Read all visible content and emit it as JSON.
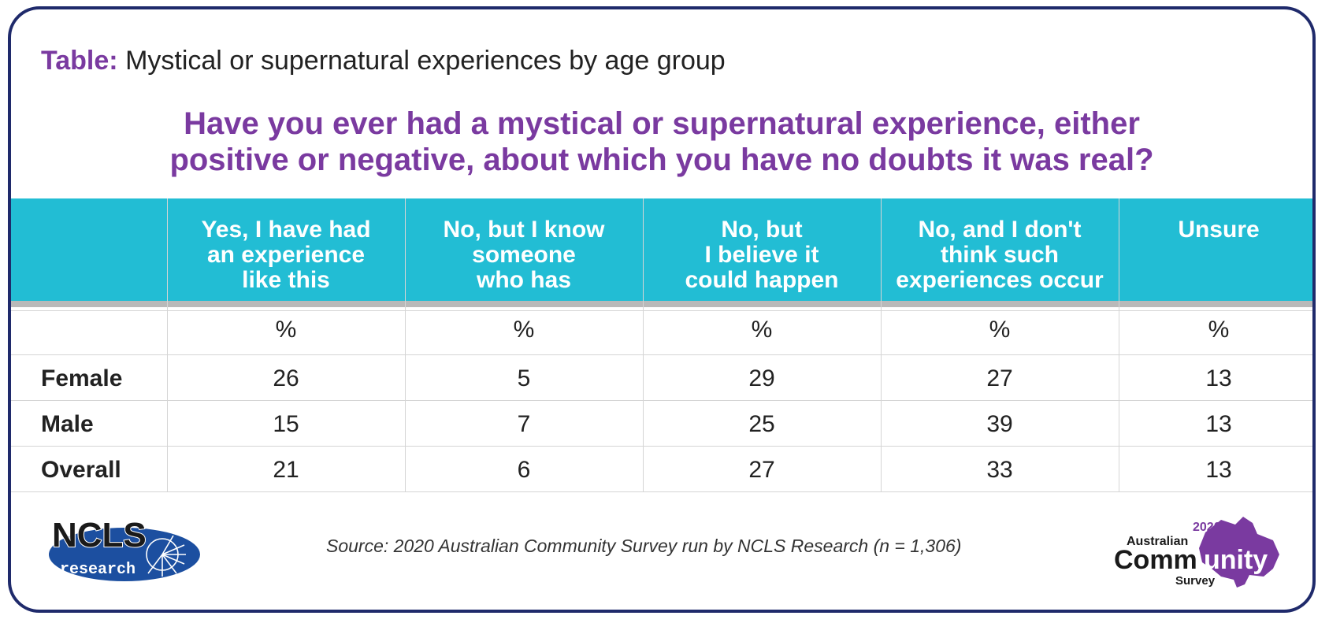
{
  "table_title": {
    "prefix": "Table:",
    "text": "Mystical or supernatural experiences by age group"
  },
  "question": {
    "line1": "Have you ever had a mystical or supernatural experience, either",
    "line2": "positive or negative, about which you have no doubts it was real?"
  },
  "columns": [
    {
      "lines": [
        "Yes, I have had",
        "an experience",
        "like this"
      ],
      "unit": "%"
    },
    {
      "lines": [
        "No, but I know",
        "someone",
        "who has"
      ],
      "unit": "%"
    },
    {
      "lines": [
        "No, but",
        "I believe it",
        "could happen"
      ],
      "unit": "%"
    },
    {
      "lines": [
        "No, and I don't",
        "think such",
        "experiences occur"
      ],
      "unit": "%"
    },
    {
      "lines": [
        "Unsure"
      ],
      "unit": "%"
    }
  ],
  "rows": [
    {
      "label": "Female",
      "values": [
        "26",
        "5",
        "29",
        "27",
        "13"
      ]
    },
    {
      "label": "Male",
      "values": [
        "15",
        "7",
        "25",
        "39",
        "13"
      ]
    },
    {
      "label": "Overall",
      "values": [
        "21",
        "6",
        "27",
        "33",
        "13"
      ]
    }
  ],
  "source": "Source: 2020 Australian Community Survey run by NCLS Research (n = 1,306)",
  "logos": {
    "ncls": {
      "main": "NCLS",
      "sub": "research"
    },
    "acs": {
      "year": "2020",
      "line1": "Australian",
      "line2a": "Comm",
      "line2b": "unity",
      "line3": "Survey"
    }
  },
  "colors": {
    "accent_purple": "#7a3aa0",
    "header_teal": "#22bdd4",
    "frame_navy": "#1f2a6b",
    "ncls_blue": "#1c4fa0"
  },
  "chart_data": {
    "type": "table",
    "title": "Mystical or supernatural experiences by age group",
    "categories": [
      "Female",
      "Male",
      "Overall"
    ],
    "unit": "%",
    "series": [
      {
        "name": "Yes, I have had an experience like this",
        "values": [
          26,
          15,
          21
        ]
      },
      {
        "name": "No, but I know someone who has",
        "values": [
          5,
          7,
          6
        ]
      },
      {
        "name": "No, but I believe it could happen",
        "values": [
          29,
          25,
          27
        ]
      },
      {
        "name": "No, and I don't think such experiences occur",
        "values": [
          27,
          39,
          33
        ]
      },
      {
        "name": "Unsure",
        "values": [
          13,
          13,
          13
        ]
      }
    ]
  }
}
